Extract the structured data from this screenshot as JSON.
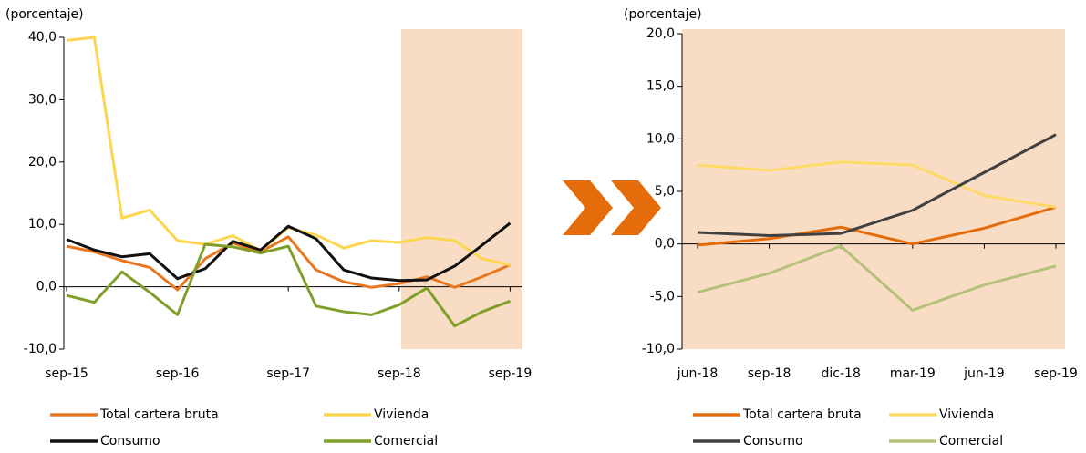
{
  "chart_data": [
    {
      "type": "line",
      "y_label": "(porcentaje)",
      "categories": [
        "sep-15",
        null,
        null,
        null,
        "sep-16",
        null,
        null,
        null,
        "sep-17",
        null,
        null,
        null,
        "sep-18",
        null,
        null,
        null,
        "sep-19"
      ],
      "ylim": [
        -10,
        40
      ],
      "yticks": [
        {
          "value": -10,
          "label": "-10,0"
        },
        {
          "value": 0,
          "label": "0,0"
        },
        {
          "value": 10,
          "label": "10,0"
        },
        {
          "value": 20,
          "label": "20,0"
        },
        {
          "value": 30,
          "label": "30,0"
        },
        {
          "value": 40,
          "label": "40,0"
        }
      ],
      "series": [
        {
          "name": "Total cartera bruta",
          "color": "#e87722",
          "values": [
            6.5,
            5.6,
            4.2,
            3.1,
            -0.5,
            4.5,
            7.0,
            5.6,
            8.0,
            2.7,
            0.8,
            -0.1,
            0.5,
            1.6,
            -0.1,
            1.6,
            3.5
          ]
        },
        {
          "name": "Vivienda",
          "color": "#fdd54f",
          "values": [
            39.5,
            40.0,
            11.0,
            12.3,
            7.4,
            6.8,
            8.2,
            5.8,
            9.5,
            8.3,
            6.2,
            7.4,
            7.1,
            7.9,
            7.4,
            4.5,
            3.5
          ]
        },
        {
          "name": "Consumo",
          "color": "#111111",
          "values": [
            7.6,
            5.9,
            4.8,
            5.3,
            1.3,
            2.9,
            7.3,
            5.9,
            9.7,
            7.7,
            2.7,
            1.4,
            1.0,
            1.1,
            3.3,
            6.7,
            10.2
          ]
        },
        {
          "name": "Comercial",
          "color": "#7f9f2a",
          "values": [
            -1.4,
            -2.5,
            2.4,
            -0.9,
            -4.5,
            6.8,
            6.4,
            5.4,
            6.5,
            -3.1,
            -4.0,
            -4.5,
            -2.9,
            -0.2,
            -6.3,
            -4.0,
            -2.3
          ]
        }
      ]
    },
    {
      "type": "line",
      "y_label": "(porcentaje)",
      "categories": [
        "jun-18",
        "sep-18",
        "dic-18",
        "mar-19",
        "jun-19",
        "sep-19"
      ],
      "ylim": [
        -10,
        20
      ],
      "yticks": [
        {
          "value": -10,
          "label": "-10,0"
        },
        {
          "value": -5,
          "label": "-5,0"
        },
        {
          "value": 0,
          "label": "0,0"
        },
        {
          "value": 5,
          "label": "5,0"
        },
        {
          "value": 10,
          "label": "10,0"
        },
        {
          "value": 15,
          "label": "15,0"
        },
        {
          "value": 20,
          "label": "20,0"
        }
      ],
      "series": [
        {
          "name": "Total cartera bruta",
          "color": "#e46c0a",
          "values": [
            -0.1,
            0.5,
            1.6,
            0.0,
            1.5,
            3.5
          ]
        },
        {
          "name": "Vivienda",
          "color": "#ffd966",
          "values": [
            7.5,
            7.0,
            7.8,
            7.5,
            4.6,
            3.5
          ]
        },
        {
          "name": "Consumo",
          "color": "#404040",
          "values": [
            1.1,
            0.8,
            1.0,
            3.2,
            6.8,
            10.4
          ]
        },
        {
          "name": "Comercial",
          "color": "#b5c07a",
          "values": [
            -4.6,
            -2.8,
            -0.2,
            -6.3,
            -3.9,
            -2.1
          ]
        }
      ]
    }
  ]
}
